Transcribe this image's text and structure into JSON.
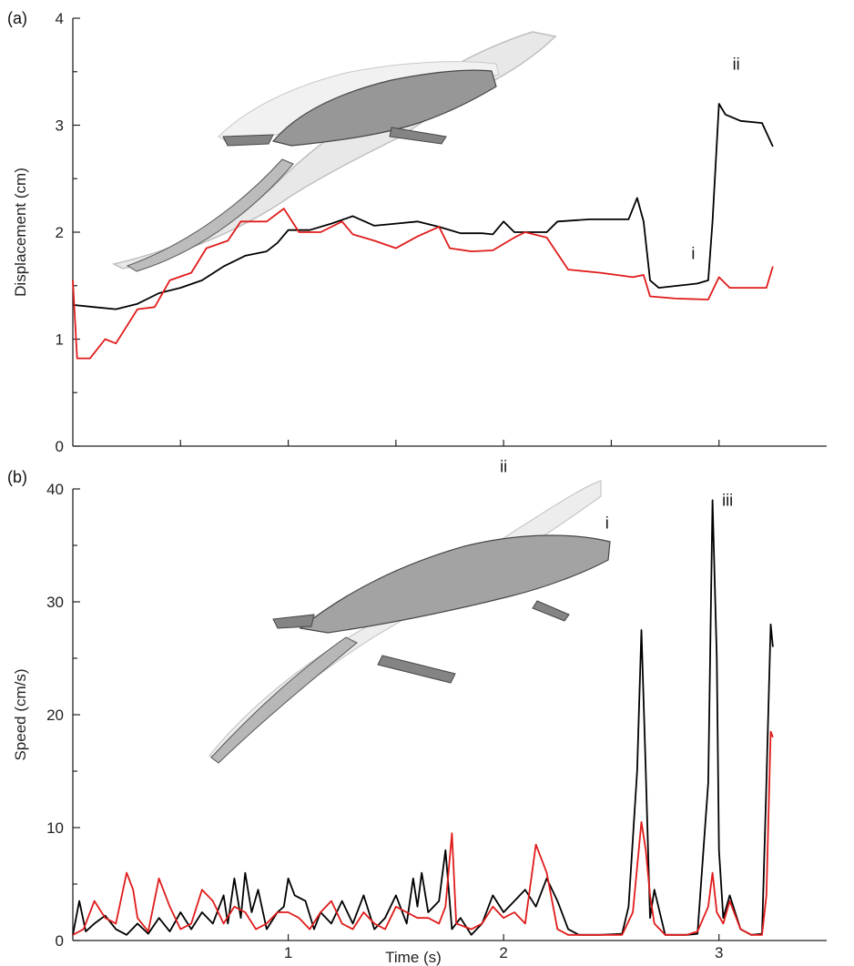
{
  "chart_data": [
    {
      "type": "line",
      "panel_label": "(a)",
      "xlabel": "",
      "ylabel": "Displacement (cm)",
      "xlim": [
        0,
        3.5
      ],
      "ylim": [
        0,
        4
      ],
      "yticks": [
        0,
        1,
        2,
        3,
        4
      ],
      "ytick_labels": [
        "0",
        "1",
        "2",
        "3",
        "4"
      ],
      "xticks": [
        0.5,
        1,
        1.5,
        2,
        2.5,
        3
      ],
      "xtick_labels": [
        "",
        "",
        "",
        "",
        "",
        ""
      ],
      "colors": {
        "black": "#000000",
        "red": "#e01b1b"
      },
      "series": [
        {
          "color": "black",
          "points": [
            [
              0.0,
              1.32
            ],
            [
              0.1,
              1.3
            ],
            [
              0.2,
              1.28
            ],
            [
              0.3,
              1.33
            ],
            [
              0.4,
              1.43
            ],
            [
              0.5,
              1.48
            ],
            [
              0.6,
              1.55
            ],
            [
              0.7,
              1.68
            ],
            [
              0.8,
              1.78
            ],
            [
              0.9,
              1.82
            ],
            [
              0.95,
              1.9
            ],
            [
              1.0,
              2.02
            ],
            [
              1.1,
              2.02
            ],
            [
              1.2,
              2.08
            ],
            [
              1.3,
              2.15
            ],
            [
              1.4,
              2.06
            ],
            [
              1.5,
              2.08
            ],
            [
              1.6,
              2.1
            ],
            [
              1.7,
              2.05
            ],
            [
              1.8,
              1.99
            ],
            [
              1.9,
              1.99
            ],
            [
              1.95,
              1.98
            ],
            [
              2.0,
              2.1
            ],
            [
              2.05,
              2.0
            ],
            [
              2.1,
              2.0
            ],
            [
              2.2,
              2.0
            ],
            [
              2.25,
              2.1
            ],
            [
              2.4,
              2.12
            ],
            [
              2.58,
              2.12
            ],
            [
              2.62,
              2.32
            ],
            [
              2.65,
              2.1
            ],
            [
              2.68,
              1.55
            ],
            [
              2.72,
              1.48
            ],
            [
              2.9,
              1.52
            ],
            [
              2.95,
              1.55
            ],
            [
              2.97,
              2.1
            ],
            [
              3.0,
              3.2
            ],
            [
              3.03,
              3.1
            ],
            [
              3.1,
              3.04
            ],
            [
              3.2,
              3.02
            ],
            [
              3.25,
              2.8
            ]
          ]
        },
        {
          "color": "red",
          "points": [
            [
              0.0,
              1.55
            ],
            [
              0.02,
              0.82
            ],
            [
              0.08,
              0.82
            ],
            [
              0.15,
              1.0
            ],
            [
              0.2,
              0.96
            ],
            [
              0.3,
              1.28
            ],
            [
              0.38,
              1.3
            ],
            [
              0.45,
              1.55
            ],
            [
              0.55,
              1.62
            ],
            [
              0.62,
              1.85
            ],
            [
              0.72,
              1.92
            ],
            [
              0.78,
              2.1
            ],
            [
              0.9,
              2.1
            ],
            [
              0.98,
              2.22
            ],
            [
              1.05,
              2.0
            ],
            [
              1.15,
              2.0
            ],
            [
              1.25,
              2.1
            ],
            [
              1.3,
              1.98
            ],
            [
              1.4,
              1.92
            ],
            [
              1.5,
              1.85
            ],
            [
              1.6,
              1.96
            ],
            [
              1.7,
              2.05
            ],
            [
              1.75,
              1.85
            ],
            [
              1.85,
              1.82
            ],
            [
              1.95,
              1.83
            ],
            [
              2.05,
              1.95
            ],
            [
              2.1,
              2.0
            ],
            [
              2.2,
              1.95
            ],
            [
              2.25,
              1.8
            ],
            [
              2.3,
              1.65
            ],
            [
              2.45,
              1.62
            ],
            [
              2.6,
              1.58
            ],
            [
              2.65,
              1.6
            ],
            [
              2.68,
              1.4
            ],
            [
              2.8,
              1.38
            ],
            [
              2.95,
              1.37
            ],
            [
              3.0,
              1.58
            ],
            [
              3.05,
              1.48
            ],
            [
              3.15,
              1.48
            ],
            [
              3.22,
              1.48
            ],
            [
              3.25,
              1.68
            ]
          ]
        }
      ],
      "annotations": [
        {
          "text": "i",
          "x": 2.88,
          "y": 1.75
        },
        {
          "text": "ii",
          "x": 3.08,
          "y": 3.52
        }
      ]
    },
    {
      "type": "line",
      "panel_label": "(b)",
      "xlabel": "Time (s)",
      "ylabel": "Speed (cm/s)",
      "xlim": [
        0,
        3.5
      ],
      "ylim": [
        0,
        40
      ],
      "yticks": [
        0,
        10,
        20,
        30,
        40
      ],
      "ytick_labels": [
        "0",
        "10",
        "20",
        "30",
        "40"
      ],
      "xticks": [
        1,
        2,
        3
      ],
      "xtick_labels": [
        "1",
        "2",
        "3"
      ],
      "colors": {
        "black": "#000000",
        "red": "#e01b1b"
      },
      "series": [
        {
          "color": "black",
          "points": [
            [
              0.0,
              0.5
            ],
            [
              0.03,
              3.5
            ],
            [
              0.06,
              0.8
            ],
            [
              0.1,
              1.5
            ],
            [
              0.15,
              2.2
            ],
            [
              0.2,
              1.0
            ],
            [
              0.25,
              0.5
            ],
            [
              0.3,
              1.5
            ],
            [
              0.35,
              0.6
            ],
            [
              0.4,
              2.0
            ],
            [
              0.45,
              0.8
            ],
            [
              0.5,
              2.5
            ],
            [
              0.55,
              1.0
            ],
            [
              0.6,
              2.5
            ],
            [
              0.65,
              1.5
            ],
            [
              0.7,
              4.0
            ],
            [
              0.72,
              1.5
            ],
            [
              0.75,
              5.5
            ],
            [
              0.78,
              2.0
            ],
            [
              0.8,
              6.0
            ],
            [
              0.83,
              2.5
            ],
            [
              0.86,
              4.5
            ],
            [
              0.9,
              1.0
            ],
            [
              0.95,
              2.5
            ],
            [
              0.98,
              3.0
            ],
            [
              1.0,
              5.5
            ],
            [
              1.03,
              4.0
            ],
            [
              1.08,
              3.5
            ],
            [
              1.12,
              1.0
            ],
            [
              1.15,
              2.5
            ],
            [
              1.2,
              1.5
            ],
            [
              1.25,
              3.5
            ],
            [
              1.3,
              1.5
            ],
            [
              1.35,
              4.0
            ],
            [
              1.4,
              1.0
            ],
            [
              1.45,
              2.0
            ],
            [
              1.5,
              4.0
            ],
            [
              1.55,
              1.5
            ],
            [
              1.58,
              5.5
            ],
            [
              1.6,
              3.0
            ],
            [
              1.62,
              6.0
            ],
            [
              1.65,
              2.5
            ],
            [
              1.7,
              3.5
            ],
            [
              1.73,
              8.0
            ],
            [
              1.76,
              1.0
            ],
            [
              1.8,
              2.0
            ],
            [
              1.85,
              0.5
            ],
            [
              1.9,
              1.5
            ],
            [
              1.95,
              4.0
            ],
            [
              2.0,
              2.5
            ],
            [
              2.05,
              3.5
            ],
            [
              2.1,
              4.5
            ],
            [
              2.15,
              3.0
            ],
            [
              2.2,
              5.5
            ],
            [
              2.25,
              3.5
            ],
            [
              2.3,
              1.0
            ],
            [
              2.35,
              0.5
            ],
            [
              2.45,
              0.5
            ],
            [
              2.55,
              0.6
            ],
            [
              2.58,
              3.0
            ],
            [
              2.62,
              15.0
            ],
            [
              2.64,
              27.5
            ],
            [
              2.66,
              15.0
            ],
            [
              2.68,
              2.0
            ],
            [
              2.7,
              4.5
            ],
            [
              2.75,
              0.5
            ],
            [
              2.85,
              0.5
            ],
            [
              2.9,
              0.6
            ],
            [
              2.95,
              14.0
            ],
            [
              2.97,
              39.0
            ],
            [
              2.99,
              25.0
            ],
            [
              3.0,
              8.0
            ],
            [
              3.02,
              2.0
            ],
            [
              3.05,
              4.0
            ],
            [
              3.1,
              1.0
            ],
            [
              3.15,
              0.5
            ],
            [
              3.2,
              0.6
            ],
            [
              3.22,
              14.0
            ],
            [
              3.24,
              28.0
            ],
            [
              3.25,
              26.0
            ]
          ]
        },
        {
          "color": "red",
          "points": [
            [
              0.0,
              0.5
            ],
            [
              0.05,
              1.0
            ],
            [
              0.1,
              3.5
            ],
            [
              0.15,
              2.0
            ],
            [
              0.2,
              1.5
            ],
            [
              0.25,
              6.0
            ],
            [
              0.28,
              4.5
            ],
            [
              0.3,
              2.0
            ],
            [
              0.35,
              0.8
            ],
            [
              0.4,
              5.5
            ],
            [
              0.45,
              3.0
            ],
            [
              0.5,
              1.0
            ],
            [
              0.55,
              1.5
            ],
            [
              0.6,
              4.5
            ],
            [
              0.65,
              3.5
            ],
            [
              0.7,
              1.5
            ],
            [
              0.75,
              3.0
            ],
            [
              0.8,
              2.5
            ],
            [
              0.85,
              1.0
            ],
            [
              0.9,
              1.5
            ],
            [
              0.95,
              2.5
            ],
            [
              1.0,
              2.5
            ],
            [
              1.05,
              2.0
            ],
            [
              1.1,
              1.0
            ],
            [
              1.15,
              2.5
            ],
            [
              1.2,
              3.5
            ],
            [
              1.25,
              1.5
            ],
            [
              1.3,
              1.0
            ],
            [
              1.35,
              2.5
            ],
            [
              1.4,
              1.5
            ],
            [
              1.45,
              1.0
            ],
            [
              1.5,
              3.0
            ],
            [
              1.55,
              2.5
            ],
            [
              1.6,
              2.0
            ],
            [
              1.65,
              2.0
            ],
            [
              1.7,
              1.5
            ],
            [
              1.73,
              3.0
            ],
            [
              1.76,
              9.5
            ],
            [
              1.78,
              1.5
            ],
            [
              1.85,
              1.0
            ],
            [
              1.9,
              1.5
            ],
            [
              1.95,
              3.0
            ],
            [
              2.0,
              2.0
            ],
            [
              2.05,
              2.5
            ],
            [
              2.1,
              1.5
            ],
            [
              2.15,
              8.5
            ],
            [
              2.2,
              6.0
            ],
            [
              2.25,
              1.0
            ],
            [
              2.3,
              0.5
            ],
            [
              2.4,
              0.5
            ],
            [
              2.5,
              0.5
            ],
            [
              2.55,
              0.5
            ],
            [
              2.6,
              2.5
            ],
            [
              2.64,
              10.5
            ],
            [
              2.66,
              8.0
            ],
            [
              2.68,
              4.0
            ],
            [
              2.7,
              1.5
            ],
            [
              2.75,
              0.5
            ],
            [
              2.85,
              0.5
            ],
            [
              2.9,
              0.8
            ],
            [
              2.95,
              3.0
            ],
            [
              2.97,
              6.0
            ],
            [
              2.99,
              2.5
            ],
            [
              3.02,
              1.5
            ],
            [
              3.05,
              3.5
            ],
            [
              3.1,
              1.0
            ],
            [
              3.15,
              0.5
            ],
            [
              3.2,
              0.5
            ],
            [
              3.22,
              4.0
            ],
            [
              3.24,
              18.5
            ],
            [
              3.25,
              18.0
            ]
          ]
        }
      ],
      "annotations": [
        {
          "text": "ii",
          "x": 2.0,
          "y": 41.5
        },
        {
          "text": "i",
          "x": 2.48,
          "y": 36.5
        },
        {
          "text": "iii",
          "x": 3.04,
          "y": 38.5
        }
      ]
    }
  ]
}
